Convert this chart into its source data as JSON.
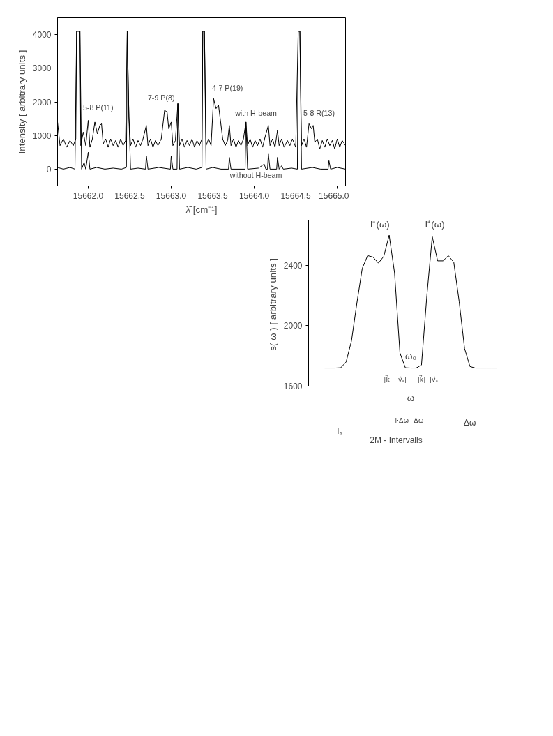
{
  "chart_data": [
    {
      "type": "line",
      "xlabel": "λ̄ [cm⁻¹]",
      "ylabel": "Intensity [ arbitrary units ]",
      "xlim": [
        15661.63,
        15665.1
      ],
      "ylim": [
        -500,
        4500
      ],
      "xticks": [
        {
          "value": 15662.0,
          "label": "15662.0"
        },
        {
          "value": 15662.5,
          "label": "15662.5"
        },
        {
          "value": 15663.0,
          "label": "15663.0"
        },
        {
          "value": 15663.5,
          "label": "15663.5"
        },
        {
          "value": 15664.0,
          "label": "15664.0"
        },
        {
          "value": 15664.5,
          "label": "15664.5"
        },
        {
          "value": 15665.0,
          "label": "15665.0"
        }
      ],
      "yticks": [
        0,
        1000,
        2000,
        3000,
        4000
      ],
      "series": [
        {
          "color": "#000000",
          "x": [
            15661.63,
            15661.66,
            15661.7,
            15661.74,
            15661.78,
            15661.82,
            15661.85,
            15661.86,
            15661.9,
            15661.91,
            15661.94,
            15661.97,
            15662.0,
            15662.02,
            15662.05,
            15662.08,
            15662.11,
            15662.14,
            15662.16,
            15662.18,
            15662.21,
            15662.24,
            15662.27,
            15662.3,
            15662.33,
            15662.36,
            15662.39,
            15662.42,
            15662.45,
            15662.47,
            15662.49,
            15662.51,
            15662.54,
            15662.57,
            15662.6,
            15662.63,
            15662.66,
            15662.7,
            15662.72,
            15662.75,
            15662.78,
            15662.81,
            15662.84,
            15662.88,
            15662.92,
            15662.95,
            15662.97,
            15663.0,
            15663.02,
            15663.05,
            15663.08,
            15663.1,
            15663.13,
            15663.16,
            15663.19,
            15663.22,
            15663.25,
            15663.28,
            15663.31,
            15663.34,
            15663.37,
            15663.38,
            15663.4,
            15663.42,
            15663.45,
            15663.48,
            15663.51,
            15663.54,
            15663.57,
            15663.59,
            15663.62,
            15663.65,
            15663.68,
            15663.7,
            15663.72,
            15663.75,
            15663.78,
            15663.81,
            15663.84,
            15663.87,
            15663.9,
            15663.92,
            15663.95,
            15663.98,
            15664.01,
            15664.04,
            15664.07,
            15664.1,
            15664.13,
            15664.17,
            15664.19,
            15664.22,
            15664.25,
            15664.28,
            15664.3,
            15664.33,
            15664.36,
            15664.4,
            15664.43,
            15664.46,
            15664.5,
            15664.53,
            15664.55,
            15664.57,
            15664.6,
            15664.63,
            15664.66,
            15664.69,
            15664.71,
            15664.73,
            15664.76,
            15664.79,
            15664.82,
            15664.85,
            15664.88,
            15664.91,
            15664.94,
            15664.97,
            15665.0,
            15665.03,
            15665.06,
            15665.1
          ],
          "values": [
            1400,
            700,
            900,
            650,
            850,
            700,
            900,
            4100,
            4100,
            700,
            1100,
            700,
            1450,
            650,
            900,
            1400,
            1050,
            1300,
            1350,
            750,
            900,
            650,
            900,
            700,
            850,
            650,
            900,
            700,
            850,
            4100,
            1550,
            700,
            900,
            650,
            850,
            700,
            900,
            1300,
            700,
            900,
            650,
            850,
            700,
            900,
            1750,
            1700,
            1200,
            1400,
            700,
            850,
            1950,
            700,
            900,
            650,
            850,
            700,
            900,
            650,
            850,
            700,
            900,
            4100,
            4100,
            700,
            900,
            700,
            2100,
            1800,
            1900,
            1500,
            900,
            700,
            850,
            1300,
            700,
            900,
            650,
            850,
            700,
            900,
            1400,
            700,
            900,
            650,
            850,
            700,
            900,
            650,
            950,
            1300,
            700,
            900,
            650,
            1150,
            700,
            900,
            650,
            850,
            700,
            900,
            650,
            4100,
            4100,
            700,
            900,
            650,
            1350,
            1200,
            1300,
            800,
            900,
            600,
            850,
            650,
            900,
            700,
            850,
            600,
            900,
            650,
            850,
            700
          ]
        },
        {
          "color": "#000000",
          "x": [
            15661.63,
            15661.7,
            15661.78,
            15661.84,
            15661.86,
            15661.9,
            15661.92,
            15661.95,
            15661.97,
            15662.0,
            15662.02,
            15662.1,
            15662.2,
            15662.3,
            15662.4,
            15662.46,
            15662.47,
            15662.49,
            15662.51,
            15662.6,
            15662.69,
            15662.7,
            15662.72,
            15662.85,
            15662.99,
            15663.0,
            15663.02,
            15663.07,
            15663.08,
            15663.1,
            15663.2,
            15663.3,
            15663.37,
            15663.38,
            15663.4,
            15663.42,
            15663.5,
            15663.6,
            15663.69,
            15663.7,
            15663.72,
            15663.89,
            15663.9,
            15663.92,
            15664.05,
            15664.12,
            15664.14,
            15664.16,
            15664.17,
            15664.19,
            15664.27,
            15664.28,
            15664.3,
            15664.33,
            15664.35,
            15664.45,
            15664.52,
            15664.53,
            15664.55,
            15664.57,
            15664.7,
            15664.8,
            15664.89,
            15664.9,
            15664.92,
            15665.0,
            15665.1
          ],
          "values": [
            50,
            0,
            50,
            0,
            4100,
            4100,
            0,
            200,
            0,
            500,
            0,
            50,
            0,
            30,
            0,
            50,
            4100,
            1550,
            0,
            30,
            0,
            400,
            0,
            50,
            0,
            400,
            0,
            0,
            1950,
            0,
            50,
            0,
            50,
            4100,
            4100,
            0,
            50,
            0,
            0,
            350,
            0,
            0,
            1400,
            0,
            30,
            150,
            0,
            0,
            450,
            0,
            0,
            350,
            0,
            100,
            0,
            30,
            0,
            4100,
            4100,
            0,
            50,
            0,
            0,
            250,
            0,
            50,
            0
          ]
        }
      ],
      "annotations": [
        "5-8 P(11)",
        "7-9 P(8)",
        "4-7 P(19)",
        "with H-beam",
        "5-8 R(13)",
        "without H-beam"
      ]
    },
    {
      "type": "line",
      "xlabel": "ω",
      "ylabel": "s( ω )  [ arbitrary units ]",
      "ylim": [
        1600,
        2700
      ],
      "tick_labels": "y",
      "categories": [
        null,
        null,
        null,
        null,
        null,
        null,
        null,
        null,
        null,
        null,
        null,
        null,
        null,
        null,
        null,
        null,
        null,
        null,
        null,
        null,
        null,
        null,
        null,
        null,
        null,
        null,
        null,
        null,
        null,
        null,
        null,
        null,
        null
      ],
      "yticks": [
        1600,
        2000,
        2400
      ],
      "series": [
        {
          "color": "#000000",
          "values": [
            1720,
            1720,
            1720,
            1722,
            1760,
            1900,
            2150,
            2380,
            2465,
            2455,
            2415,
            2460,
            2600,
            2350,
            1820,
            1722,
            1720,
            1720,
            1740,
            2200,
            2590,
            2430,
            2430,
            2465,
            2420,
            2160,
            1850,
            1730,
            1720,
            1720,
            1720,
            1720,
            1720
          ]
        }
      ],
      "annotations": [
        "I⁻(ω)",
        "I⁺(ω)",
        "ω₀",
        "|k⃗|",
        "|v⃗ₛ|",
        "|k⃗|",
        "|v⃗ₛ|"
      ]
    },
    {
      "type": "other",
      "annotations": [
        "i·Δω",
        "Δω",
        "Δω",
        "Iₛ",
        "2M -  Intervalls"
      ]
    }
  ]
}
